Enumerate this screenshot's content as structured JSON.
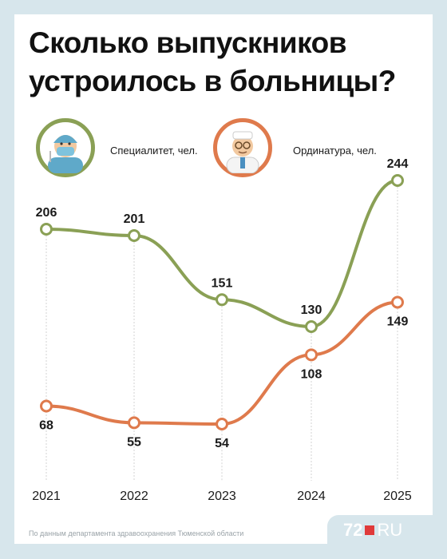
{
  "title_line1": "Сколько выпускников",
  "title_line2": "устроилось в больницы?",
  "source": "По данным департамента здравоохранения Тюменской области",
  "logo": {
    "number": "72",
    "suffix": "RU"
  },
  "colors": {
    "specialitet": "#8aa055",
    "ordinatura": "#df7a4c",
    "background": "#d7e6ec"
  },
  "icons": {
    "specialitet": "surgeon-avatar-icon",
    "ordinatura": "doctor-avatar-icon"
  },
  "chart_data": {
    "type": "line",
    "categories": [
      "2021",
      "2022",
      "2023",
      "2024",
      "2025"
    ],
    "series": [
      {
        "name": "Специалитет, чел.",
        "values": [
          206,
          201,
          151,
          130,
          244
        ]
      },
      {
        "name": "Ординатура, чел.",
        "values": [
          68,
          55,
          54,
          108,
          149
        ]
      }
    ],
    "ylim": [
      0,
      270
    ],
    "grid": false,
    "legend": "top"
  }
}
